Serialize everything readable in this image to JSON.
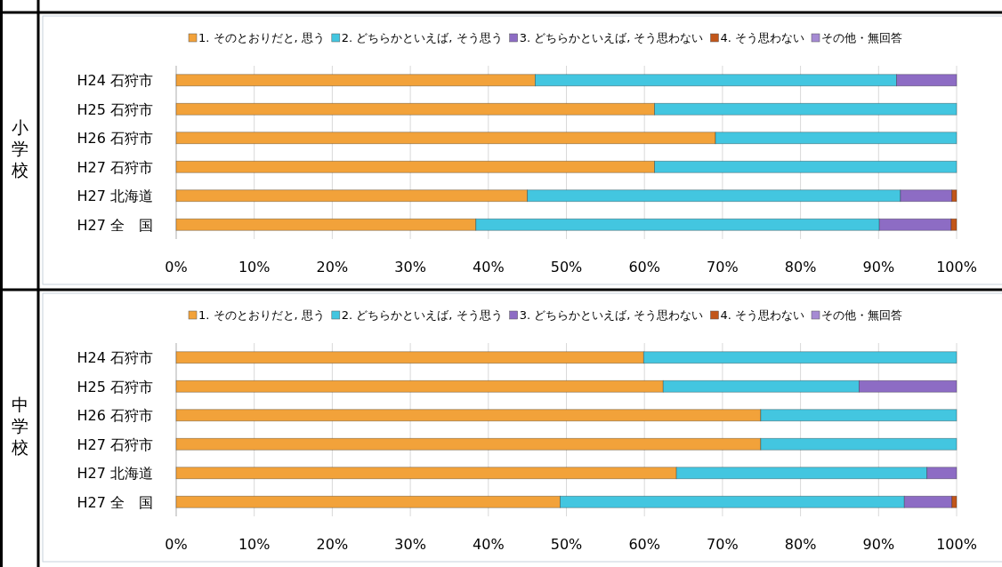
{
  "chart_data": [
    {
      "type": "bar",
      "orientation": "horizontal",
      "stacked": true,
      "ylabel": "小学校",
      "legend": "top",
      "grid": "x",
      "categories": [
        "H24 石狩市",
        "H25 石狩市",
        "H26 石狩市",
        "H27 石狩市",
        "H27 北海道",
        "H27 全　国"
      ],
      "xlim": [
        0,
        100
      ],
      "xticks": [
        {
          "value": 0,
          "label": "0%"
        },
        {
          "value": 10,
          "label": "10%"
        },
        {
          "value": 20,
          "label": "20%"
        },
        {
          "value": 30,
          "label": "30%"
        },
        {
          "value": 40,
          "label": "40%"
        },
        {
          "value": 50,
          "label": "50%"
        },
        {
          "value": 60,
          "label": "60%"
        },
        {
          "value": 70,
          "label": "70%"
        },
        {
          "value": 80,
          "label": "80%"
        },
        {
          "value": 90,
          "label": "90%"
        },
        {
          "value": 100,
          "label": "100%"
        }
      ],
      "series": [
        {
          "name": "1. そのとおりだと, 思う",
          "color": "#f2a23a",
          "values": [
            46.0,
            61.3,
            69.1,
            61.3,
            45.0,
            38.4
          ]
        },
        {
          "name": "2. どちらかといえば, そう思う",
          "color": "#43c6e0",
          "values": [
            46.3,
            38.7,
            30.9,
            38.7,
            47.8,
            51.7
          ]
        },
        {
          "name": "3. どちらかといえば, そう思わない",
          "color": "#8d6cc4",
          "values": [
            7.7,
            0,
            0,
            0,
            6.6,
            9.2
          ]
        },
        {
          "name": "4. そう思わない",
          "color": "#c2561a",
          "values": [
            0,
            0,
            0,
            0,
            0.6,
            0.7
          ]
        },
        {
          "name": "その他・無回答",
          "color": "#a58ad3",
          "values": [
            0,
            0,
            0,
            0,
            0,
            0
          ]
        }
      ]
    },
    {
      "type": "bar",
      "orientation": "horizontal",
      "stacked": true,
      "ylabel": "中学校",
      "legend": "top",
      "grid": "x",
      "categories": [
        "H24 石狩市",
        "H25 石狩市",
        "H26 石狩市",
        "H27 石狩市",
        "H27 北海道",
        "H27 全　国"
      ],
      "xlim": [
        0,
        100
      ],
      "xticks": [
        {
          "value": 0,
          "label": "0%"
        },
        {
          "value": 10,
          "label": "10%"
        },
        {
          "value": 20,
          "label": "20%"
        },
        {
          "value": 30,
          "label": "30%"
        },
        {
          "value": 40,
          "label": "40%"
        },
        {
          "value": 50,
          "label": "50%"
        },
        {
          "value": 60,
          "label": "60%"
        },
        {
          "value": 70,
          "label": "70%"
        },
        {
          "value": 80,
          "label": "80%"
        },
        {
          "value": 90,
          "label": "90%"
        },
        {
          "value": 100,
          "label": "100%"
        }
      ],
      "series": [
        {
          "name": "1. そのとおりだと, 思う",
          "color": "#f2a23a",
          "values": [
            59.9,
            62.4,
            74.9,
            74.9,
            64.1,
            49.2
          ]
        },
        {
          "name": "2. どちらかといえば, そう思う",
          "color": "#43c6e0",
          "values": [
            40.1,
            25.1,
            25.1,
            25.1,
            32.1,
            44.1
          ]
        },
        {
          "name": "3. どちらかといえば, そう思わない",
          "color": "#8d6cc4",
          "values": [
            0,
            12.5,
            0,
            0,
            3.8,
            6.1
          ]
        },
        {
          "name": "4. そう思わない",
          "color": "#c2561a",
          "values": [
            0,
            0,
            0,
            0,
            0,
            0.6
          ]
        },
        {
          "name": "その他・無回答",
          "color": "#a58ad3",
          "values": [
            0,
            0,
            0,
            0,
            0,
            0
          ]
        }
      ]
    }
  ]
}
